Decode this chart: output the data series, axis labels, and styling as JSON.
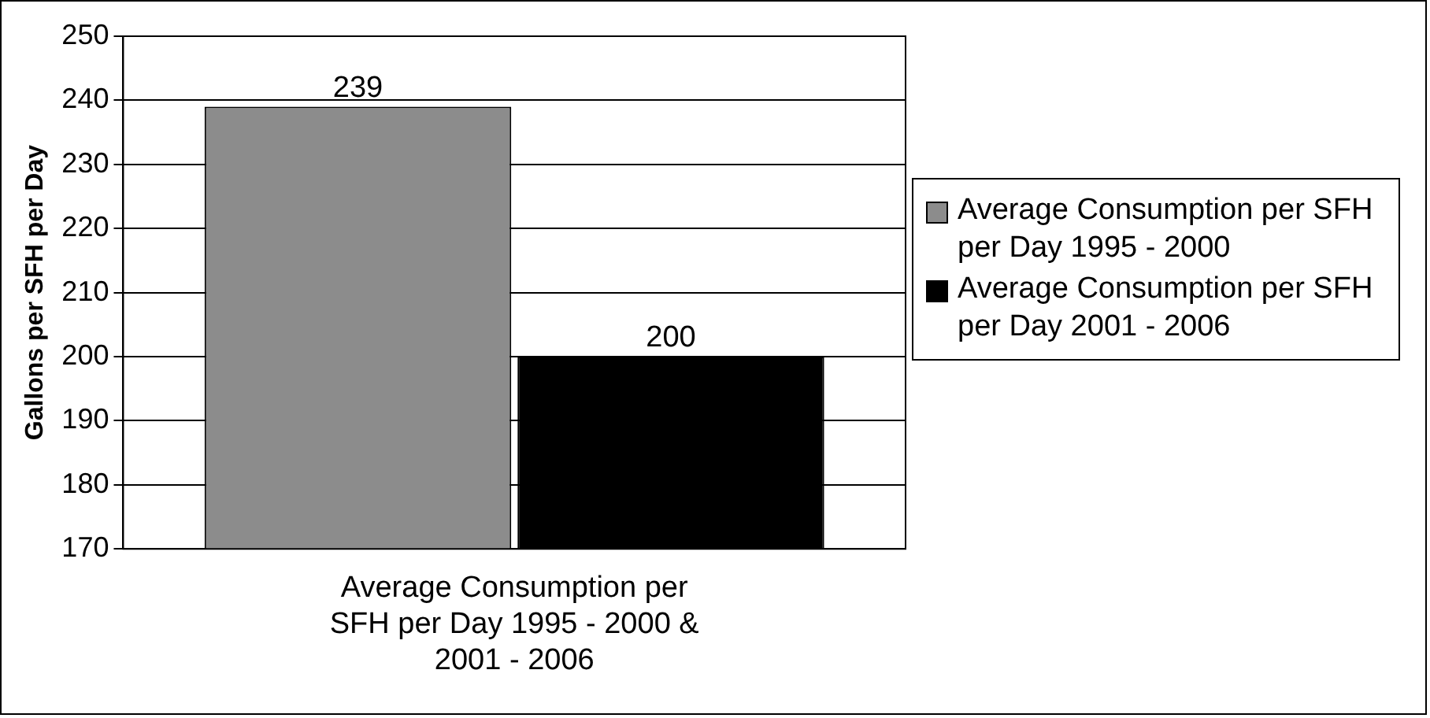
{
  "chart_data": {
    "type": "bar",
    "categories": [
      "Average Consumption per SFH per Day 1995 - 2000 & 2001 - 2006"
    ],
    "ylabel": "Gallons per SFH per Day",
    "series": [
      {
        "name": "Average Consumption per SFH per Day 1995 - 2000",
        "color": "#8c8c8c",
        "values": [
          239
        ]
      },
      {
        "name": "Average Consumption per SFH per Day 2001 - 2006",
        "color": "#000000",
        "values": [
          200
        ]
      }
    ],
    "ylim": [
      170,
      250
    ],
    "yticks": [
      170,
      180,
      190,
      200,
      210,
      220,
      230,
      240,
      250
    ],
    "grid": "y",
    "legend": "right",
    "data_labels": true
  }
}
